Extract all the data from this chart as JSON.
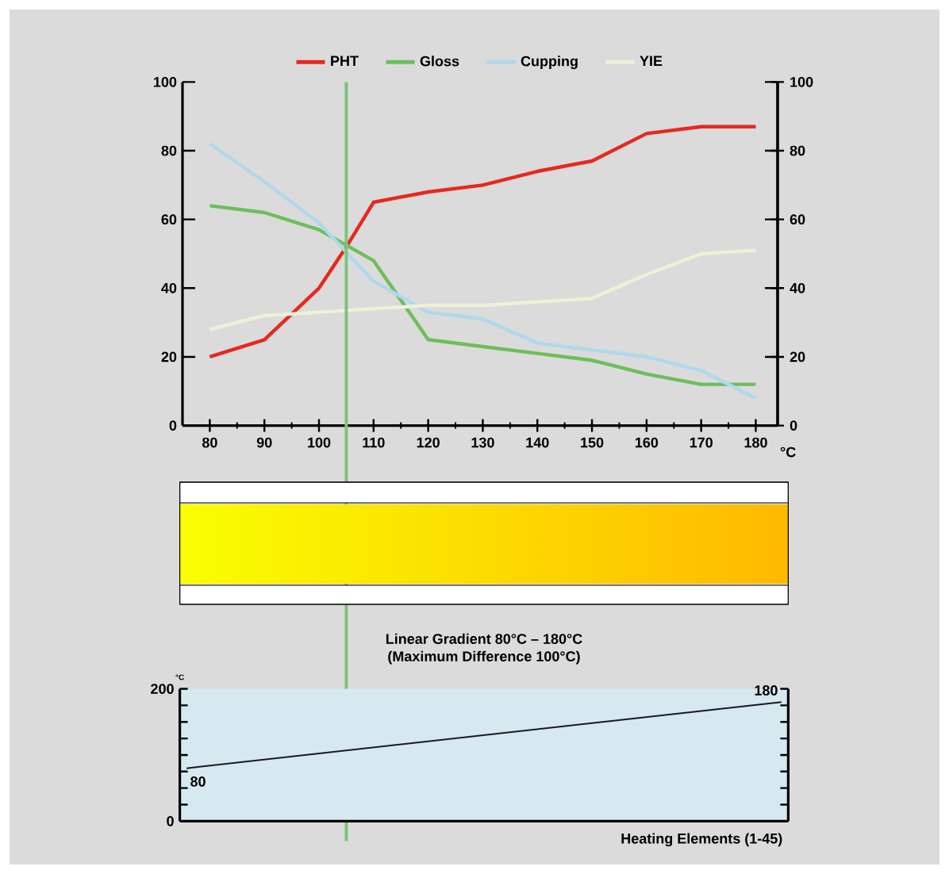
{
  "chart_data": [
    {
      "type": "line",
      "xlabel": "°C",
      "series": [
        {
          "name": "PHT",
          "color": "#e8281e",
          "x": [
            80,
            90,
            100,
            105,
            110,
            120,
            130,
            140,
            150,
            160,
            170,
            180
          ],
          "values": [
            20,
            25,
            40,
            52,
            65,
            68,
            70,
            74,
            77,
            85,
            87,
            87
          ]
        },
        {
          "name": "Gloss",
          "color": "#6cbf5c",
          "x": [
            80,
            90,
            100,
            110,
            120,
            130,
            140,
            150,
            160,
            170,
            180
          ],
          "values": [
            64,
            62,
            57,
            48,
            25,
            23,
            21,
            19,
            15,
            12,
            12
          ]
        },
        {
          "name": "Cupping",
          "color": "#b0d8ec",
          "x": [
            80,
            90,
            100,
            110,
            120,
            130,
            140,
            150,
            160,
            170,
            180
          ],
          "values": [
            82,
            71,
            59,
            42,
            33,
            31,
            24,
            22,
            20,
            16,
            8
          ]
        },
        {
          "name": "YIE",
          "color": "#f0f0d8",
          "x": [
            80,
            90,
            100,
            110,
            120,
            130,
            140,
            150,
            160,
            170,
            180
          ],
          "values": [
            28,
            32,
            33,
            34,
            35,
            35,
            36,
            37,
            44,
            50,
            51
          ]
        }
      ],
      "xlim": [
        75,
        184
      ],
      "xticks": [
        80,
        90,
        100,
        110,
        120,
        130,
        140,
        150,
        160,
        170,
        180
      ],
      "ylim": [
        0,
        100
      ],
      "yticks": [
        0,
        20,
        40,
        60,
        80,
        100
      ],
      "y2lim": [
        0,
        100
      ],
      "y2ticks": [
        0,
        20,
        40,
        60,
        80,
        100
      ],
      "ref_lines": [
        {
          "axis": "x",
          "value": 105,
          "color": "#7cc47a"
        }
      ],
      "legend": "top"
    },
    {
      "type": "line",
      "title": "Linear Gradient 80°C – 180°C",
      "subtitle": "(Maximum Difference 100°C)",
      "xlabel": "Heating Elements (1-45)",
      "ylabel": "°C",
      "categories": [
        null,
        null,
        null,
        null,
        null,
        null,
        null,
        null,
        null,
        null,
        null,
        null,
        null,
        null,
        null,
        null,
        null,
        null,
        null,
        null,
        null,
        null,
        null,
        null,
        null,
        null,
        null,
        null,
        null,
        null,
        null,
        null,
        null,
        null,
        null,
        null,
        null,
        null,
        null,
        null,
        null,
        null,
        null,
        null,
        null
      ],
      "values": [
        80,
        null,
        null,
        null,
        null,
        null,
        null,
        null,
        null,
        null,
        null,
        null,
        null,
        null,
        null,
        null,
        null,
        null,
        null,
        null,
        null,
        null,
        null,
        null,
        null,
        null,
        null,
        null,
        null,
        null,
        null,
        null,
        null,
        null,
        null,
        null,
        null,
        null,
        null,
        null,
        null,
        null,
        null,
        null,
        180
      ],
      "value_labels": [
        "80",
        null,
        null,
        null,
        null,
        null,
        null,
        null,
        null,
        null,
        null,
        null,
        null,
        null,
        null,
        null,
        null,
        null,
        null,
        null,
        null,
        null,
        null,
        null,
        null,
        null,
        null,
        null,
        null,
        null,
        null,
        null,
        null,
        null,
        null,
        null,
        null,
        null,
        null,
        null,
        null,
        null,
        null,
        null,
        "180"
      ],
      "color": "#1a1a1a",
      "ylim": [
        0,
        200
      ],
      "yticks": [
        0,
        {
          "value": 25,
          "label": null
        },
        {
          "value": 50,
          "label": null
        },
        {
          "value": 75,
          "label": null
        },
        {
          "value": 100,
          "label": null
        },
        {
          "value": 125,
          "label": null
        },
        {
          "value": 150,
          "label": null
        },
        {
          "value": 175,
          "label": null
        },
        200
      ],
      "tick_labels": "y"
    }
  ]
}
